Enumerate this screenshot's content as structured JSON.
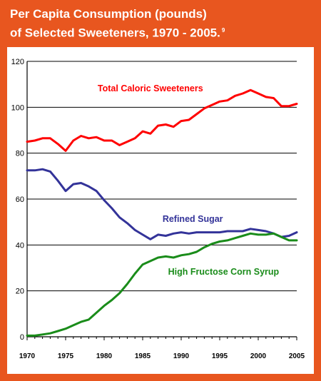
{
  "title": {
    "line1": "Per Capita Consumption (pounds)",
    "line2": "of Selected Sweeteners, 1970 - 2005.",
    "footnote": "9"
  },
  "colors": {
    "background": "#e8561f",
    "total_caloric": "#ff0000",
    "refined_sugar": "#333399",
    "hfcs": "#1a8c1a"
  },
  "chart_data": {
    "type": "line",
    "title": "Per Capita Consumption (pounds) of Selected Sweeteners, 1970 - 2005.",
    "xlabel": "",
    "ylabel": "",
    "xlim": [
      1970,
      2005
    ],
    "ylim": [
      0,
      120
    ],
    "yticks": [
      0,
      20,
      40,
      60,
      80,
      100,
      120
    ],
    "xticks": [
      1970,
      1975,
      1980,
      1985,
      1990,
      1995,
      2000,
      2005
    ],
    "grid": "horizontal",
    "x": [
      1970,
      1971,
      1972,
      1973,
      1974,
      1975,
      1976,
      1977,
      1978,
      1979,
      1980,
      1981,
      1982,
      1983,
      1984,
      1985,
      1986,
      1987,
      1988,
      1989,
      1990,
      1991,
      1992,
      1993,
      1994,
      1995,
      1996,
      1997,
      1998,
      1999,
      2000,
      2001,
      2002,
      2003,
      2004,
      2005
    ],
    "series": [
      {
        "name": "Total Caloric Sweeteners",
        "color": "#ff0000",
        "values": [
          85,
          85.5,
          86.5,
          86.5,
          84,
          81,
          85.5,
          87.5,
          86.5,
          87,
          85.5,
          85.5,
          83.5,
          85,
          86.5,
          89.5,
          88.5,
          92,
          92.5,
          91.5,
          94,
          94.5,
          97,
          99.5,
          101,
          102.5,
          103,
          105,
          106,
          107.5,
          106,
          104.5,
          104,
          100.5,
          100.5,
          101.5
        ]
      },
      {
        "name": "Refined Sugar",
        "color": "#333399",
        "values": [
          72.5,
          72.5,
          73,
          72,
          68,
          63.5,
          66.5,
          67,
          65.5,
          63.5,
          59.5,
          56,
          52,
          49.5,
          46.5,
          44.5,
          42.5,
          44.5,
          44,
          45,
          45.5,
          45,
          45.5,
          45.5,
          45.5,
          45.5,
          46,
          46,
          46,
          47,
          46.5,
          46,
          45,
          43.5,
          44,
          45.5
        ]
      },
      {
        "name": "High Fructose Corn Syrup",
        "color": "#1a8c1a",
        "values": [
          0.5,
          0.5,
          1,
          1.5,
          2.5,
          3.5,
          5,
          6.5,
          7.5,
          10.5,
          13.5,
          16,
          19,
          23,
          27.5,
          31.5,
          33,
          34.5,
          35,
          34.5,
          35.5,
          36,
          37,
          39,
          40.5,
          41.5,
          42,
          43,
          44,
          45,
          44.5,
          44.5,
          45,
          43.5,
          42,
          42
        ]
      }
    ]
  }
}
